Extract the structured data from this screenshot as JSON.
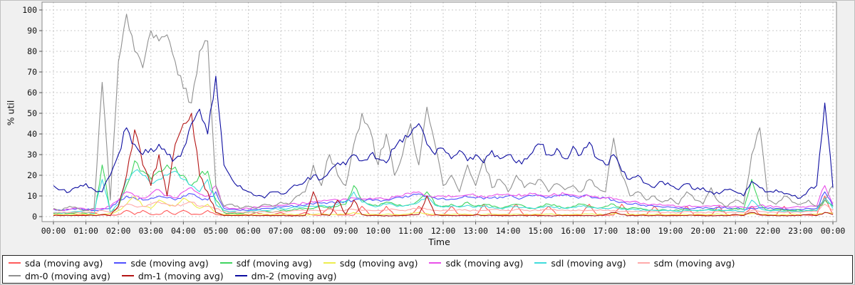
{
  "chart_data": {
    "type": "line",
    "title": "",
    "xlabel": "Time",
    "ylabel": "% util",
    "ylim": [
      0,
      100
    ],
    "y_ticks": [
      0,
      10,
      20,
      30,
      40,
      50,
      60,
      70,
      80,
      90,
      100
    ],
    "x_hours": 24,
    "x_tick_labels": [
      "00:00",
      "01:00",
      "02:00",
      "03:00",
      "04:00",
      "05:00",
      "06:00",
      "07:00",
      "08:00",
      "09:00",
      "10:00",
      "11:00",
      "12:00",
      "13:00",
      "14:00",
      "15:00",
      "16:00",
      "17:00",
      "18:00",
      "19:00",
      "20:00",
      "21:00",
      "22:00",
      "23:00",
      "00:00"
    ],
    "sample_interval_minutes": 15,
    "grid": true,
    "legend_position": "bottom",
    "colors": {
      "plot_background": "#ffffff",
      "panel_background": "#f0f0f0",
      "gridline": "#c8c8c8",
      "plot_border": "#888888",
      "legend_border": "#222222"
    },
    "series": [
      {
        "id": "sda",
        "label": "sda (moving avg)",
        "color": "#ff5a5a",
        "values": [
          0.7,
          0.7,
          2,
          0.7,
          0.7,
          2,
          0.7,
          0.7,
          1,
          3,
          1,
          3,
          1,
          1,
          3,
          1,
          3,
          1,
          1,
          3,
          1,
          0.7,
          2,
          0.7,
          0.7,
          2,
          0.7,
          0.7,
          2,
          0.7,
          0.7,
          2,
          0.7,
          0.7,
          5,
          0.7,
          0.7,
          0.7,
          5,
          0.7,
          0.7,
          5,
          0.7,
          0.7,
          0.7,
          5,
          0.7,
          0.7,
          0.7,
          5,
          0.7,
          0.7,
          0.7,
          6,
          0.7,
          0.7,
          0.7,
          6,
          0.7,
          0.7,
          0.7,
          5,
          0.7,
          0.7,
          0.7,
          0.7,
          6,
          0.7,
          0.7,
          0.7,
          6,
          0.7,
          0.7,
          0.7,
          5,
          0.7,
          0.7,
          0.7,
          5,
          0.7,
          0.7,
          0.7,
          5,
          0.7,
          0.7,
          0.7,
          5,
          0.7,
          0.7,
          0.7,
          5,
          0.7,
          0.7,
          0.7,
          0.7,
          10,
          1
        ]
      },
      {
        "id": "sde",
        "label": "sde (moving avg)",
        "color": "#5050ff",
        "values": [
          3.5,
          3,
          3.5,
          4,
          3.5,
          3,
          3.5,
          4,
          8,
          10,
          9,
          8,
          9,
          10,
          9,
          8,
          10,
          11,
          9,
          8,
          12,
          4,
          3.5,
          3,
          3,
          3.5,
          4,
          4,
          4.5,
          5,
          5,
          5.5,
          6,
          6.5,
          7,
          7,
          7.5,
          8,
          8,
          8.5,
          8,
          8,
          9,
          9,
          10,
          11,
          10,
          9,
          9,
          8.5,
          9,
          9.5,
          9,
          8.5,
          9,
          9.5,
          10,
          9,
          9.5,
          10,
          10,
          9.5,
          10,
          10.5,
          10,
          9.5,
          10,
          9,
          9,
          8,
          7,
          6,
          6,
          5,
          5,
          4.5,
          4.5,
          4,
          4,
          4,
          4,
          4,
          4.5,
          4,
          4,
          3.5,
          4,
          4.5,
          4,
          4,
          3.5,
          3.5,
          3.5,
          4,
          4,
          12,
          5
        ]
      },
      {
        "id": "sdf",
        "label": "sdf (moving avg)",
        "color": "#3fd45f",
        "values": [
          1.5,
          1,
          1.5,
          2,
          1.5,
          1,
          25,
          2,
          5,
          15,
          27,
          22,
          18,
          22,
          25,
          24,
          20,
          15,
          20,
          22,
          8,
          2,
          1.5,
          1.5,
          2,
          2,
          2.5,
          2,
          3,
          3,
          3.5,
          4,
          4,
          5,
          4,
          5,
          6,
          15,
          8,
          6,
          5,
          7,
          6,
          5,
          6,
          8,
          12,
          6,
          5,
          6,
          5,
          7,
          5,
          6,
          5,
          4,
          5,
          6,
          5,
          4,
          5,
          6,
          5,
          4,
          5,
          6,
          5,
          4,
          5,
          6,
          4,
          4,
          4,
          3.5,
          3,
          3.5,
          3,
          3,
          3.5,
          3,
          3,
          3.5,
          3,
          3,
          4,
          3.5,
          18,
          6,
          3,
          3.5,
          3,
          3,
          3,
          3,
          3,
          8,
          5
        ]
      },
      {
        "id": "sdg",
        "label": "sdg (moving avg)",
        "color": "#eded4e",
        "values": [
          1,
          1,
          1,
          1.2,
          1,
          1,
          1,
          1.5,
          3,
          6,
          10,
          5,
          4,
          8,
          6,
          5,
          9,
          7,
          4,
          6,
          2,
          1,
          1,
          1,
          1,
          1,
          1,
          1,
          1,
          1,
          1,
          1,
          1,
          1.2,
          1,
          1,
          1.5,
          2,
          1,
          1,
          1,
          1.2,
          1,
          1,
          1.5,
          2,
          1.5,
          1,
          1,
          1,
          1.2,
          1,
          1,
          1,
          1.2,
          1,
          1,
          1.2,
          1,
          1,
          1,
          1.2,
          1,
          1,
          1,
          1,
          1.2,
          1,
          1,
          1.5,
          1,
          1,
          1,
          1,
          1,
          1,
          1,
          1,
          1,
          1,
          1,
          1,
          1.2,
          1,
          1,
          1,
          1.5,
          1,
          1,
          1,
          1,
          1,
          1,
          1,
          1,
          2,
          1.5
        ]
      },
      {
        "id": "sdk",
        "label": "sdk (moving avg)",
        "color": "#e94fe9",
        "values": [
          3.5,
          3,
          3.5,
          4,
          3.5,
          3.5,
          4,
          5,
          8,
          12,
          10,
          9,
          11,
          13,
          10,
          9,
          12,
          14,
          11,
          10,
          15,
          5,
          4,
          4,
          4,
          4.5,
          5,
          5,
          5.5,
          6,
          6,
          6.5,
          7,
          7.5,
          8,
          8,
          8.5,
          9,
          8.5,
          9,
          9,
          8.5,
          9.5,
          10,
          11,
          12,
          10,
          9.5,
          10,
          9.5,
          10,
          10.5,
          10,
          9.5,
          10,
          10.5,
          11,
          10,
          10.5,
          11,
          10.5,
          10,
          10.5,
          11,
          10.5,
          10,
          10,
          9.5,
          9,
          8.5,
          8,
          7,
          7,
          6,
          6,
          5.5,
          5.5,
          5,
          5,
          5,
          5,
          5,
          5.5,
          5,
          5,
          4.5,
          5,
          5.5,
          5,
          5,
          4.5,
          4.5,
          4.5,
          5,
          5,
          15,
          6
        ]
      },
      {
        "id": "sdl",
        "label": "sdl (moving avg)",
        "color": "#40dcdc",
        "values": [
          2,
          1.5,
          2,
          2.5,
          2,
          1.5,
          18,
          2,
          6,
          18,
          22,
          20,
          16,
          18,
          20,
          22,
          18,
          15,
          12,
          18,
          6,
          3,
          2.5,
          2,
          2.5,
          3,
          3,
          3.5,
          4,
          4,
          4.5,
          5,
          5,
          5.5,
          5,
          6,
          7,
          12,
          7,
          5.5,
          5,
          6,
          5.5,
          5,
          6,
          7,
          10,
          5.5,
          4.5,
          5,
          4.5,
          5.5,
          4.5,
          5,
          4.5,
          4,
          4.5,
          5,
          4.5,
          4,
          4.5,
          5,
          4.5,
          4,
          4.5,
          5,
          4.5,
          4,
          4,
          4.5,
          3.5,
          3.5,
          3.5,
          3,
          3,
          3,
          3,
          2.5,
          3,
          3,
          3,
          3,
          3.5,
          3,
          3,
          2.5,
          8,
          4,
          3,
          3,
          2.5,
          2.5,
          2.5,
          3,
          3,
          9,
          4
        ]
      },
      {
        "id": "sdm",
        "label": "sdm (moving avg)",
        "color": "#ffaaaa",
        "values": [
          2,
          2,
          2,
          2,
          2,
          2,
          3,
          2,
          4,
          6,
          5,
          5,
          6,
          7,
          6,
          5,
          6,
          7,
          5,
          5,
          4,
          2.5,
          2,
          2,
          2,
          2,
          2.5,
          2,
          2.5,
          2.5,
          3,
          3,
          3,
          3,
          3.5,
          3,
          3,
          3.5,
          3,
          3,
          3,
          3,
          3.5,
          3,
          3.5,
          4,
          3.5,
          3,
          3,
          3,
          3.5,
          3,
          3,
          3,
          3.5,
          3,
          3,
          3.5,
          3,
          3,
          3,
          3.5,
          3,
          3,
          3,
          3,
          3,
          3,
          3,
          3,
          2.5,
          2.5,
          2.5,
          2.5,
          2.5,
          2,
          2,
          2,
          2.5,
          2,
          2,
          2,
          2.5,
          2,
          2,
          2,
          3,
          2.5,
          2,
          2,
          2,
          2,
          2,
          2.5,
          2.5,
          6,
          3
        ]
      },
      {
        "id": "dm-0",
        "label": "dm-0 (moving avg)",
        "color": "#909090",
        "values": [
          4,
          3,
          5,
          4,
          3,
          4,
          65,
          8,
          75,
          98,
          80,
          72,
          90,
          85,
          88,
          75,
          62,
          55,
          80,
          85,
          15,
          5,
          6,
          4,
          5,
          4,
          6,
          5,
          7,
          6,
          10,
          12,
          25,
          15,
          30,
          20,
          15,
          35,
          50,
          42,
          25,
          40,
          20,
          30,
          45,
          25,
          53,
          35,
          15,
          20,
          12,
          25,
          15,
          28,
          14,
          18,
          12,
          20,
          14,
          16,
          18,
          12,
          16,
          13,
          15,
          12,
          18,
          14,
          12,
          38,
          20,
          10,
          12,
          8,
          10,
          7,
          9,
          6,
          12,
          8,
          6,
          14,
          7,
          5,
          8,
          6,
          30,
          43,
          8,
          6,
          10,
          7,
          6,
          8,
          5,
          8,
          15
        ]
      },
      {
        "id": "dm-1",
        "label": "dm-1 (moving avg)",
        "color": "#b41414",
        "values": [
          0.5,
          0.5,
          0.5,
          0.5,
          0.5,
          0.5,
          1,
          0.5,
          5,
          20,
          42,
          25,
          15,
          30,
          10,
          35,
          45,
          50,
          20,
          12,
          2,
          0.5,
          0.5,
          0.5,
          0.5,
          0.5,
          0.5,
          0.5,
          0.5,
          0.5,
          0.5,
          0.5,
          12,
          1,
          0.5,
          8,
          1,
          8,
          1,
          0.5,
          0.5,
          0.5,
          0.5,
          0.5,
          1,
          1,
          10,
          1,
          0.5,
          0.5,
          0.5,
          0.5,
          1,
          0.5,
          0.5,
          0.5,
          0.5,
          0.5,
          0.5,
          0.5,
          0.5,
          0.5,
          0.5,
          0.5,
          0.5,
          0.5,
          0.5,
          0.5,
          1,
          2,
          1,
          0.5,
          0.5,
          0.5,
          0.5,
          0.5,
          0.5,
          0.5,
          0.5,
          0.5,
          0.5,
          0.5,
          0.5,
          0.5,
          1,
          0.5,
          2,
          1,
          0.5,
          0.5,
          0.5,
          0.5,
          0.5,
          1,
          0.5,
          2,
          1
        ]
      },
      {
        "id": "dm-2",
        "label": "dm-2 (moving avg)",
        "color": "#0d0da0",
        "values": [
          15,
          13,
          12,
          14,
          16,
          13,
          12,
          20,
          30,
          43,
          35,
          30,
          33,
          35,
          30,
          28,
          33,
          45,
          52,
          40,
          68,
          25,
          18,
          15,
          12,
          10,
          9,
          12,
          11,
          13,
          15,
          17,
          20,
          18,
          22,
          26,
          25,
          30,
          27,
          30,
          28,
          26,
          33,
          36,
          40,
          45,
          35,
          30,
          33,
          28,
          32,
          27,
          30,
          26,
          32,
          28,
          30,
          26,
          28,
          31,
          35,
          30,
          33,
          28,
          34,
          30,
          36,
          28,
          25,
          30,
          22,
          18,
          20,
          16,
          14,
          17,
          15,
          13,
          16,
          13,
          14,
          12,
          11,
          13,
          12,
          10,
          17,
          14,
          12,
          13,
          11,
          10,
          9,
          13,
          15,
          55,
          14
        ]
      }
    ]
  }
}
